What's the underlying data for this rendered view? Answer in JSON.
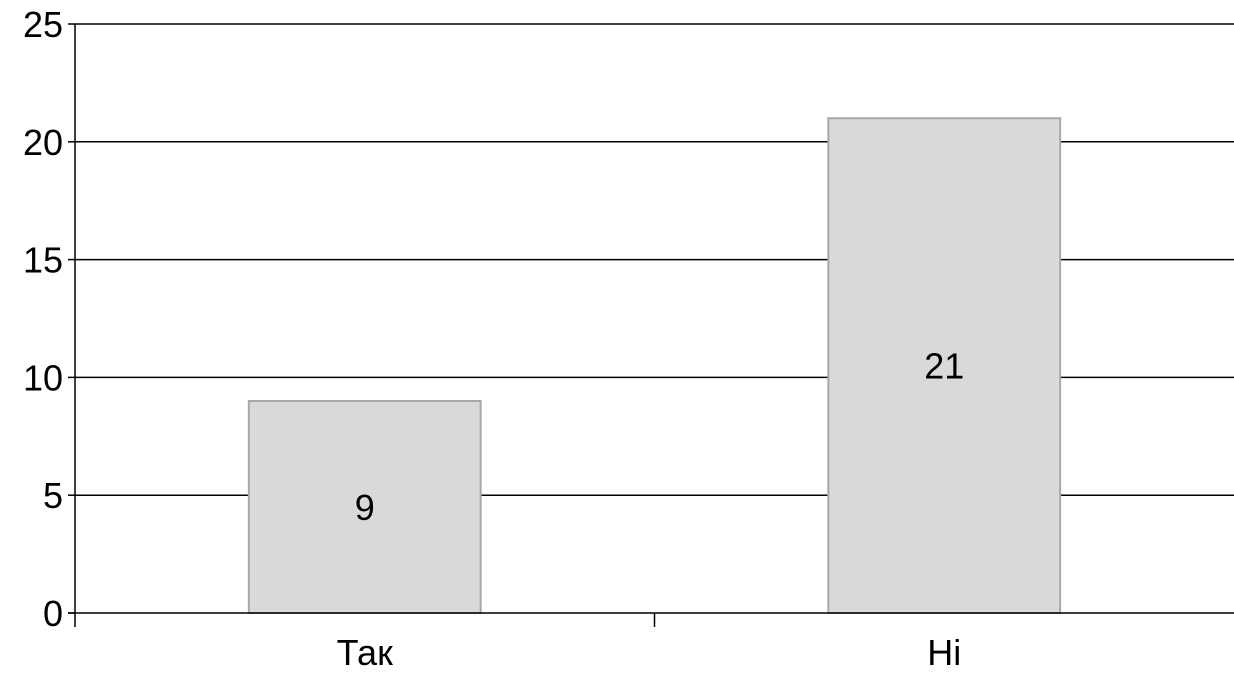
{
  "chart_data": {
    "type": "bar",
    "title": "",
    "xlabel": "",
    "ylabel": "",
    "categories": [
      "Так",
      "Ні"
    ],
    "values": [
      9,
      21
    ],
    "data_labels": [
      "9",
      "21"
    ],
    "ylim": [
      0,
      25
    ],
    "yticks": [
      0,
      5,
      10,
      15,
      20,
      25
    ],
    "ytick_labels": [
      "0",
      "5",
      "10",
      "15",
      "20",
      "25"
    ],
    "grid": true,
    "legend": "none",
    "colors": {
      "bar_fill": "#d9d9d9",
      "bar_edge": "#a8a8a8",
      "grid": "#000000"
    }
  }
}
